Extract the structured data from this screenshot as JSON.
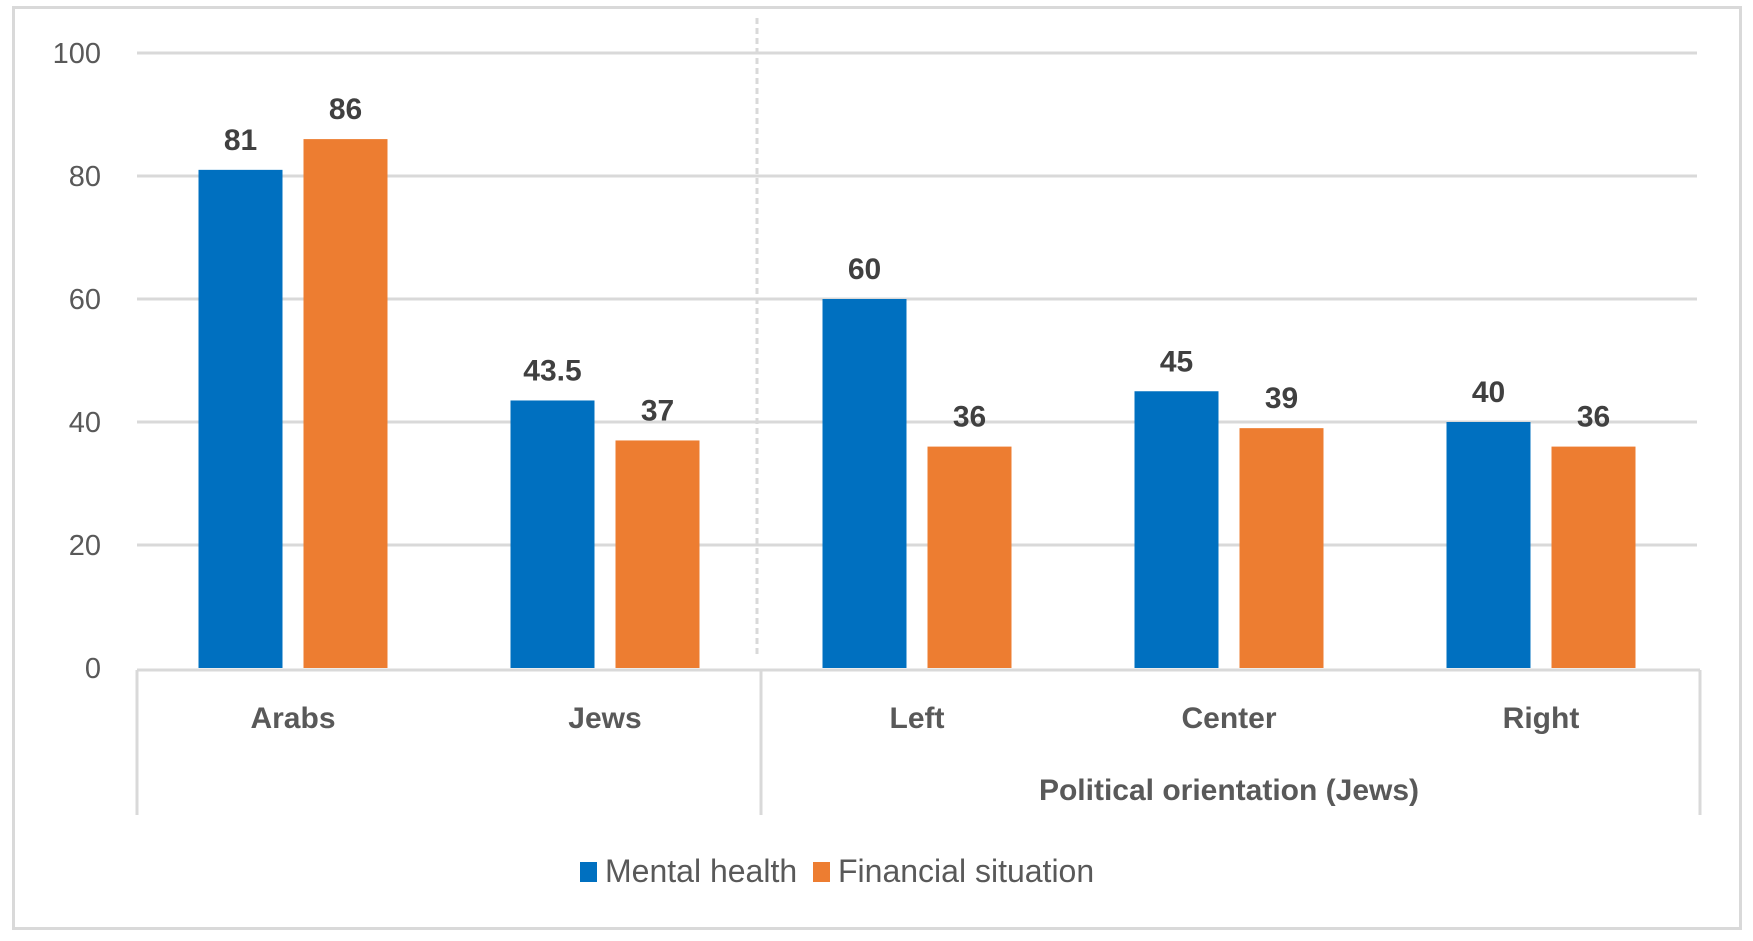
{
  "chart_data": {
    "type": "bar",
    "title": "",
    "xlabel": "",
    "ylabel": "",
    "ylim": [
      0,
      100
    ],
    "yticks": [
      0,
      20,
      40,
      60,
      80,
      100
    ],
    "ytick_labels": [
      "0",
      "20",
      "40",
      "60",
      "80",
      "100"
    ],
    "grid": true,
    "categories": [
      "Arabs",
      "Jews",
      "Left",
      "Center",
      "Right"
    ],
    "category_groups": [
      {
        "label": "",
        "categories": [
          "Arabs",
          "Jews"
        ]
      },
      {
        "label": "Political orientation (Jews)",
        "categories": [
          "Left",
          "Center",
          "Right"
        ]
      }
    ],
    "series": [
      {
        "name": "Mental health",
        "color": "#0070C0",
        "values": [
          81,
          43.5,
          60,
          45,
          40
        ],
        "labels": [
          "81",
          "43.5",
          "60",
          "45",
          "40"
        ]
      },
      {
        "name": "Financial situation",
        "color": "#ED7D31",
        "values": [
          86,
          37,
          36,
          39,
          36
        ],
        "labels": [
          "86",
          "37",
          "36",
          "39",
          "36"
        ]
      }
    ],
    "legend_position": "bottom",
    "divider": "dashed vertical line between Jews and Left"
  }
}
